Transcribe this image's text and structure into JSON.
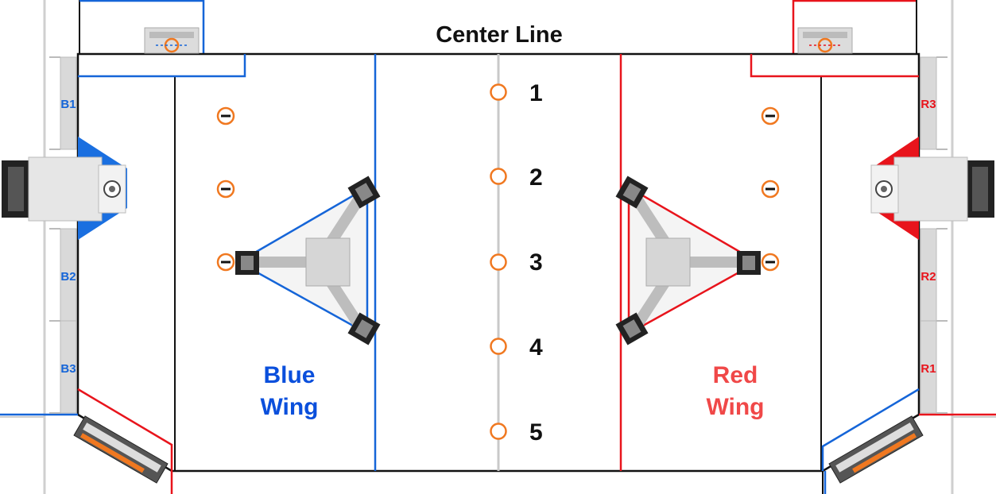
{
  "title": "Center Line",
  "wings": {
    "blue": {
      "line1": "Blue",
      "line2": "Wing",
      "color": "#0a4fdc"
    },
    "red": {
      "line1": "Red",
      "line2": "Wing",
      "color": "#f04848"
    }
  },
  "center_notes": [
    "1",
    "2",
    "3",
    "4",
    "5"
  ],
  "stations": {
    "blue": [
      "B1",
      "B2",
      "B3"
    ],
    "red": [
      "R3",
      "R2",
      "R1"
    ]
  },
  "colors": {
    "blue_alliance": "#1565d8",
    "red_alliance": "#e8141c",
    "note_orange": "#f07820",
    "field_line": "#111111"
  }
}
